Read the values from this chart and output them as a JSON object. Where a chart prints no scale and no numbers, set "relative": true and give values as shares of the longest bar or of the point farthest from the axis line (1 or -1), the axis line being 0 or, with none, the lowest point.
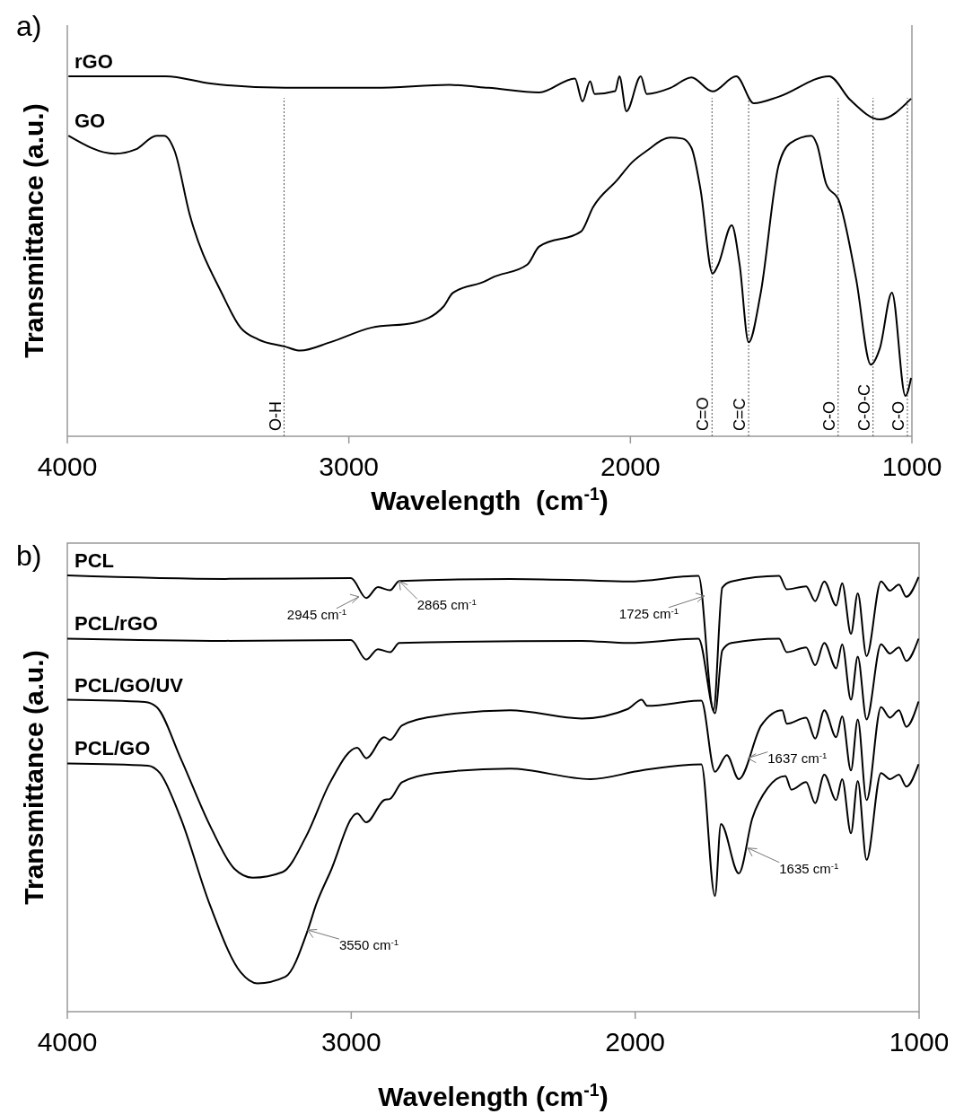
{
  "chart_data": [
    {
      "type": "line",
      "title": "a)",
      "xlabel": "Wavelength  (cm$^{-1}$)",
      "ylabel": "Transmittance (a.u.)",
      "relative": true,
      "xlim": [
        4000,
        1000
      ],
      "xticks": [
        4000,
        3000,
        2000,
        1000
      ],
      "legend": false,
      "grid": false,
      "marker": "none",
      "line_style": "solid",
      "ref_lines": [
        {
          "axis": "x",
          "value": 3230,
          "label": "O-H",
          "line_style": "dotted",
          "color": "#555555"
        },
        {
          "axis": "x",
          "value": 1710,
          "label": "C=O",
          "line_style": "dotted",
          "color": "#555555"
        },
        {
          "axis": "x",
          "value": 1580,
          "label": "C=C",
          "line_style": "dotted",
          "color": "#555555"
        },
        {
          "axis": "x",
          "value": 1262,
          "label": "C-O",
          "line_style": "dotted",
          "color": "#555555"
        },
        {
          "axis": "x",
          "value": 1138,
          "label": "C-O-C",
          "line_style": "dotted",
          "color": "#555555"
        },
        {
          "axis": "x",
          "value": 1016,
          "label": "C-O",
          "line_style": "dotted",
          "color": "#555555"
        }
      ],
      "series": [
        {
          "name": "rGO",
          "color": "#000000",
          "x": [
            3996,
            3651,
            3491,
            3226,
            2908,
            2643,
            2504,
            2324,
            2197,
            2170,
            2143,
            2127,
            2054,
            2039,
            2014,
            1963,
            1942,
            1857,
            1783,
            1708,
            1624,
            1561,
            1474,
            1294,
            1220,
            1114,
            1003
          ],
          "values": [
            1.0,
            1.0,
            0.98,
            0.968,
            0.968,
            0.976,
            0.968,
            0.955,
            0.994,
            0.93,
            0.986,
            0.951,
            0.959,
            1.0,
            0.903,
            1.0,
            0.951,
            0.968,
            0.997,
            0.958,
            1.0,
            0.925,
            0.943,
            1.0,
            0.935,
            0.88,
            0.938
          ]
        },
        {
          "name": "GO",
          "color": "#000000",
          "x": [
            3996,
            3831,
            3757,
            3683,
            3656,
            3619,
            3566,
            3449,
            3385,
            3322,
            3226,
            3173,
            3067,
            2918,
            2770,
            2663,
            2631,
            2515,
            2493,
            2366,
            2324,
            2175,
            2133,
            2048,
            1994,
            1942,
            1857,
            1815,
            1783,
            1751,
            1708,
            1688,
            1640,
            1612,
            1580,
            1538,
            1474,
            1433,
            1357,
            1337,
            1305,
            1258,
            1198,
            1146,
            1114,
            1071,
            1023,
            1003
          ],
          "values": [
            0.835,
            0.785,
            0.797,
            0.835,
            0.835,
            0.793,
            0.618,
            0.394,
            0.302,
            0.269,
            0.249,
            0.238,
            0.261,
            0.302,
            0.315,
            0.361,
            0.398,
            0.431,
            0.44,
            0.477,
            0.527,
            0.569,
            0.636,
            0.711,
            0.761,
            0.793,
            0.83,
            0.827,
            0.801,
            0.686,
            0.452,
            0.477,
            0.586,
            0.477,
            0.261,
            0.394,
            0.751,
            0.814,
            0.835,
            0.81,
            0.702,
            0.652,
            0.436,
            0.199,
            0.244,
            0.399,
            0.112,
            0.162
          ]
        }
      ]
    },
    {
      "type": "line",
      "title": "b)",
      "xlabel": "Wavelength (cm$^{-1}$)",
      "ylabel": "Transmittance (a.u.)",
      "relative": true,
      "xlim": [
        4000,
        1000
      ],
      "xticks": [
        4000,
        3000,
        2000,
        1000
      ],
      "legend": false,
      "grid": false,
      "marker": "none",
      "line_style": "solid",
      "annotations": [
        {
          "text": "2945 cm$^{-1}$",
          "x": 2973,
          "y": 0.951
        },
        {
          "text": "2865 cm$^{-1}$",
          "x": 2831,
          "y": 0.987
        },
        {
          "text": "1725 cm$^{-1}$",
          "x": 1756,
          "y": 0.953
        },
        {
          "text": "1637 cm$^{-1}$",
          "x": 1603,
          "y": 0.581
        },
        {
          "text": "1635 cm$^{-1}$",
          "x": 1603,
          "y": 0.375
        },
        {
          "text": "3550 cm$^{-1}$",
          "x": 3153,
          "y": 0.187
        }
      ],
      "series": [
        {
          "name": "PCL",
          "color": "#000000",
          "x": [
            4000,
            3443,
            3001,
            2947,
            2906,
            2863,
            2831,
            2441,
            2188,
            2025,
            1777,
            1724,
            1693,
            1661,
            1493,
            1466,
            1398,
            1366,
            1334,
            1292,
            1271,
            1240,
            1216,
            1185,
            1134,
            1103,
            1071,
            1045,
            1002
          ],
          "values": [
            1.0,
            0.992,
            0.994,
            0.948,
            0.973,
            0.966,
            0.987,
            0.992,
            0.989,
            0.986,
            0.999,
            0.691,
            0.972,
            0.986,
            0.999,
            0.968,
            0.975,
            0.941,
            0.986,
            0.931,
            0.982,
            0.866,
            0.959,
            0.815,
            0.986,
            0.965,
            0.979,
            0.951,
            0.996
          ]
        },
        {
          "name": "PCL/rGO",
          "color": "#000000",
          "x": [
            4000,
            3443,
            3001,
            2947,
            2906,
            2863,
            2831,
            2188,
            2025,
            1777,
            1719,
            1693,
            1661,
            1493,
            1466,
            1398,
            1366,
            1334,
            1292,
            1271,
            1240,
            1216,
            1185,
            1134,
            1103,
            1071,
            1045,
            1002
          ],
          "values": [
            0.855,
            0.85,
            0.852,
            0.807,
            0.831,
            0.824,
            0.845,
            0.85,
            0.845,
            0.855,
            0.684,
            0.828,
            0.845,
            0.855,
            0.824,
            0.835,
            0.794,
            0.845,
            0.787,
            0.842,
            0.715,
            0.814,
            0.67,
            0.842,
            0.821,
            0.835,
            0.804,
            0.855
          ]
        },
        {
          "name": "PCL/GO/UV",
          "color": "#000000",
          "x": [
            4000,
            3727,
            3685,
            3601,
            3495,
            3411,
            3347,
            3242,
            3158,
            3074,
            2979,
            2947,
            2884,
            2863,
            2821,
            2705,
            2441,
            2188,
            2025,
            1977,
            1957,
            1767,
            1719,
            1677,
            1635,
            1556,
            1482,
            1466,
            1398,
            1366,
            1334,
            1292,
            1271,
            1240,
            1216,
            1185,
            1134,
            1103,
            1071,
            1045,
            1002
          ],
          "values": [
            0.715,
            0.71,
            0.698,
            0.581,
            0.423,
            0.327,
            0.307,
            0.32,
            0.403,
            0.526,
            0.605,
            0.581,
            0.629,
            0.623,
            0.656,
            0.677,
            0.691,
            0.672,
            0.694,
            0.715,
            0.701,
            0.713,
            0.55,
            0.588,
            0.533,
            0.656,
            0.691,
            0.66,
            0.674,
            0.626,
            0.691,
            0.629,
            0.677,
            0.553,
            0.67,
            0.485,
            0.698,
            0.674,
            0.691,
            0.653,
            0.711
          ]
        },
        {
          "name": "PCL/GO",
          "color": "#000000",
          "x": [
            4000,
            3716,
            3674,
            3601,
            3498,
            3390,
            3330,
            3232,
            3153,
            3124,
            3074,
            2979,
            2947,
            2884,
            2863,
            2821,
            2705,
            2441,
            2157,
            1977,
            1767,
            1719,
            1698,
            1635,
            1587,
            1534,
            1471,
            1450,
            1398,
            1366,
            1334,
            1292,
            1271,
            1240,
            1216,
            1185,
            1134,
            1103,
            1071,
            1045,
            1002
          ],
          "values": [
            0.569,
            0.564,
            0.547,
            0.444,
            0.245,
            0.091,
            0.065,
            0.08,
            0.187,
            0.245,
            0.32,
            0.454,
            0.434,
            0.485,
            0.488,
            0.526,
            0.547,
            0.557,
            0.533,
            0.553,
            0.567,
            0.265,
            0.43,
            0.317,
            0.444,
            0.512,
            0.54,
            0.509,
            0.526,
            0.478,
            0.543,
            0.485,
            0.533,
            0.409,
            0.529,
            0.348,
            0.547,
            0.533,
            0.543,
            0.516,
            0.567
          ]
        }
      ]
    }
  ]
}
